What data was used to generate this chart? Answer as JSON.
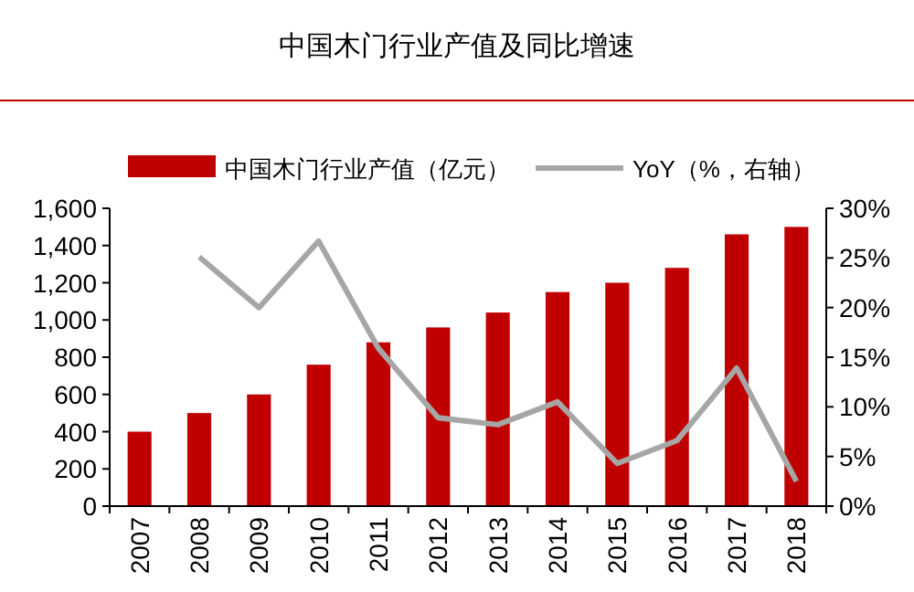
{
  "chart_data": {
    "type": "bar",
    "title": "中国木门行业产值及同比增速",
    "categories": [
      "2007",
      "2008",
      "2009",
      "2010",
      "2011",
      "2012",
      "2013",
      "2014",
      "2015",
      "2016",
      "2017",
      "2018"
    ],
    "series": [
      {
        "name": "中国木门行业产值（亿元）",
        "color": "#c00000",
        "values": [
          400,
          500,
          600,
          760,
          880,
          960,
          1040,
          1150,
          1200,
          1280,
          1460,
          1500
        ]
      },
      {
        "name": "YoY（%，右轴）",
        "type": "line",
        "axis": "y2",
        "color": "#a6a6a6",
        "values": [
          null,
          25.1,
          20.0,
          26.7,
          15.9,
          8.9,
          8.2,
          10.5,
          4.3,
          6.6,
          13.9,
          2.5
        ]
      }
    ],
    "ylim": [
      0,
      1600
    ],
    "yticks": [
      0,
      200,
      400,
      600,
      {
        "value": 800,
        "label": "800"
      },
      {
        "value": 1000,
        "label": "1,000"
      },
      {
        "value": 1200,
        "label": "1,200"
      },
      {
        "value": 1400,
        "label": "1,400"
      },
      {
        "value": 1600,
        "label": "1,600"
      }
    ],
    "y2lim": [
      0,
      30
    ],
    "y2ticks": [
      {
        "value": 0,
        "label": "0%"
      },
      {
        "value": 5,
        "label": "5%"
      },
      {
        "value": 10,
        "label": "10%"
      },
      {
        "value": 15,
        "label": "15%"
      },
      {
        "value": 20,
        "label": "20%"
      },
      {
        "value": 25,
        "label": "25%"
      },
      {
        "value": 30,
        "label": "30%"
      }
    ],
    "legend": "top",
    "grid": false,
    "marker": "none",
    "line_style": "solid"
  }
}
